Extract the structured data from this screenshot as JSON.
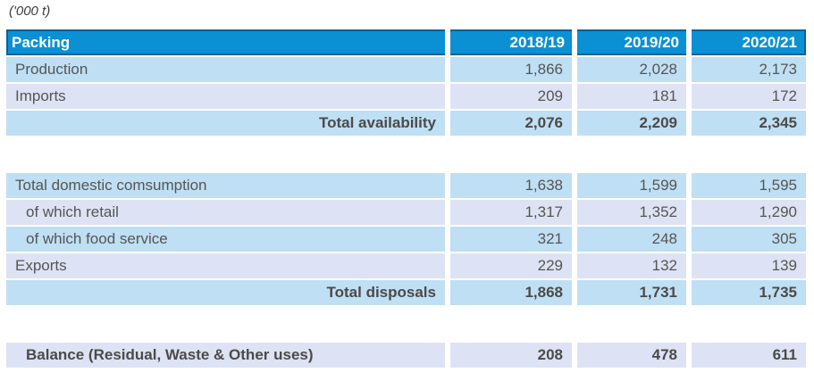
{
  "caption": "('000 t)",
  "colors": {
    "header_fill": "#0b90d4",
    "header_border": "#0d6296",
    "row_light_blue": "#bfdff4",
    "row_lavender": "#dde3f4",
    "text": "#575553",
    "header_text": "#ffffff"
  },
  "table": {
    "header": {
      "label": "Packing",
      "columns": [
        "2018/19",
        "2019/20",
        "2020/21"
      ]
    },
    "rows": [
      {
        "label": "Production",
        "values": [
          "1,866",
          "2,028",
          "2,173"
        ]
      },
      {
        "label": "Imports",
        "values": [
          "209",
          "181",
          "172"
        ]
      },
      {
        "label": "Total availability",
        "values": [
          "2,076",
          "2,209",
          "2,345"
        ]
      },
      {
        "label": "Total domestic comsumption",
        "values": [
          "1,638",
          "1,599",
          "1,595"
        ]
      },
      {
        "label": "of which retail",
        "values": [
          "1,317",
          "1,352",
          "1,290"
        ]
      },
      {
        "label": "of which food service",
        "values": [
          "321",
          "248",
          "305"
        ]
      },
      {
        "label": "Exports",
        "values": [
          "229",
          "132",
          "139"
        ]
      },
      {
        "label": "Total disposals",
        "values": [
          "1,868",
          "1,731",
          "1,735"
        ]
      },
      {
        "label": "Balance (Residual, Waste & Other uses)",
        "values": [
          "208",
          "478",
          "611"
        ]
      }
    ]
  },
  "chart_data": {
    "type": "table",
    "title": "Packing ('000 t)",
    "unit": "'000 t",
    "columns": [
      "2018/19",
      "2019/20",
      "2020/21"
    ],
    "rows": [
      {
        "name": "Production",
        "values": [
          1866,
          2028,
          2173
        ]
      },
      {
        "name": "Imports",
        "values": [
          209,
          181,
          172
        ]
      },
      {
        "name": "Total availability",
        "values": [
          2076,
          2209,
          2345
        ]
      },
      {
        "name": "Total domestic comsumption",
        "values": [
          1638,
          1599,
          1595
        ]
      },
      {
        "name": "of which retail",
        "values": [
          1317,
          1352,
          1290
        ]
      },
      {
        "name": "of which food service",
        "values": [
          321,
          248,
          305
        ]
      },
      {
        "name": "Exports",
        "values": [
          229,
          132,
          139
        ]
      },
      {
        "name": "Total disposals",
        "values": [
          1868,
          1731,
          1735
        ]
      },
      {
        "name": "Balance (Residual, Waste & Other uses)",
        "values": [
          208,
          478,
          611
        ]
      }
    ]
  }
}
